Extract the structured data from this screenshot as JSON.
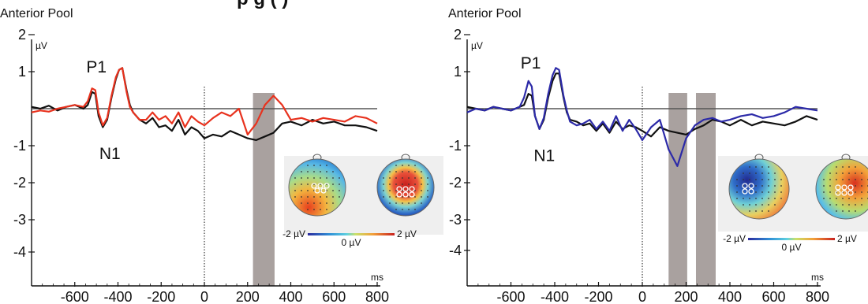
{
  "header": {
    "title_fragment": "p                                    g      ( )"
  },
  "colors": {
    "condition_a": "#e8321e",
    "condition_b": "#2c2aa8",
    "baseline_trace": "#111111",
    "shade": "#a9a19f",
    "topo_panel_bg": "#efefef"
  },
  "chart_data": [
    {
      "type": "line",
      "panel_label": "Anterior Pool",
      "y_unit": "µV",
      "x_unit": "ms",
      "xlim": [
        -800,
        800
      ],
      "ylim": [
        -5,
        2
      ],
      "x_ticks": [
        "-600",
        "-400",
        "-200",
        "0",
        "200",
        "400",
        "600",
        "800"
      ],
      "y_ticks": [
        "2",
        "1",
        "-1",
        "-2",
        "-3",
        "-4"
      ],
      "annotations": [
        {
          "text": "P1",
          "x": -510,
          "y": 0.6
        },
        {
          "text": "N1",
          "x": -450,
          "y": -0.6
        }
      ],
      "shaded_windows": [
        [
          225,
          325
        ]
      ],
      "series": [
        {
          "color": "#111111",
          "x": [
            -800,
            -760,
            -720,
            -680,
            -640,
            -600,
            -560,
            -540,
            -520,
            -505,
            -490,
            -470,
            -450,
            -430,
            -410,
            -395,
            -380,
            -360,
            -345,
            -330,
            -300,
            -270,
            -240,
            -210,
            -180,
            -150,
            -120,
            -90,
            -60,
            -30,
            0,
            40,
            80,
            120,
            160,
            200,
            240,
            280,
            320,
            360,
            400,
            450,
            500,
            550,
            600,
            650,
            700,
            750,
            800
          ],
          "y": [
            0.05,
            0.0,
            0.08,
            -0.05,
            0.05,
            0.1,
            0.0,
            0.1,
            0.45,
            0.4,
            -0.2,
            -0.5,
            -0.3,
            0.3,
            0.8,
            1.05,
            1.1,
            0.5,
            0.1,
            -0.1,
            -0.3,
            -0.4,
            -0.25,
            -0.5,
            -0.45,
            -0.6,
            -0.3,
            -0.7,
            -0.5,
            -0.6,
            -0.8,
            -0.7,
            -0.75,
            -0.6,
            -0.7,
            -0.8,
            -0.85,
            -0.75,
            -0.65,
            -0.4,
            -0.35,
            -0.45,
            -0.3,
            -0.4,
            -0.35,
            -0.45,
            -0.45,
            -0.5,
            -0.6
          ]
        },
        {
          "color": "#e8321e",
          "x": [
            -800,
            -760,
            -720,
            -680,
            -640,
            -600,
            -560,
            -540,
            -520,
            -505,
            -490,
            -470,
            -450,
            -430,
            -410,
            -395,
            -380,
            -360,
            -345,
            -330,
            -300,
            -270,
            -240,
            -210,
            -180,
            -150,
            -120,
            -90,
            -60,
            -30,
            0,
            40,
            80,
            120,
            160,
            200,
            240,
            280,
            320,
            360,
            400,
            450,
            500,
            550,
            600,
            650,
            700,
            750,
            800
          ],
          "y": [
            -0.1,
            -0.05,
            -0.08,
            0.0,
            0.05,
            0.1,
            0.05,
            0.2,
            0.55,
            0.5,
            -0.1,
            -0.45,
            -0.25,
            0.35,
            0.85,
            1.05,
            1.1,
            0.45,
            0.05,
            -0.1,
            -0.3,
            -0.3,
            -0.1,
            -0.3,
            -0.2,
            -0.4,
            -0.1,
            -0.5,
            -0.2,
            -0.35,
            -0.45,
            -0.25,
            -0.1,
            -0.2,
            0.0,
            -0.7,
            -0.4,
            0.1,
            0.35,
            0.1,
            -0.3,
            -0.25,
            -0.35,
            -0.25,
            -0.3,
            -0.35,
            -0.2,
            -0.25,
            -0.4
          ]
        }
      ],
      "topomaps": {
        "colorbar_min": "-2 µV",
        "colorbar_mid": "0 µV",
        "colorbar_max": "2 µV"
      }
    },
    {
      "type": "line",
      "panel_label": "Anterior Pool",
      "y_unit": "µV",
      "x_unit": "ms",
      "xlim": [
        -800,
        800
      ],
      "ylim": [
        -5,
        2
      ],
      "x_ticks": [
        "-600",
        "-400",
        "-200",
        "0",
        "200",
        "400",
        "600",
        "800"
      ],
      "y_ticks": [
        "2",
        "1",
        "-1",
        "-2",
        "-3",
        "-4"
      ],
      "annotations": [
        {
          "text": "P1",
          "x": -520,
          "y": 0.7
        },
        {
          "text": "N1",
          "x": -460,
          "y": -0.65
        }
      ],
      "shaded_windows": [
        [
          120,
          205
        ],
        [
          245,
          335
        ]
      ],
      "series": [
        {
          "color": "#111111",
          "x": [
            -800,
            -760,
            -720,
            -680,
            -640,
            -600,
            -560,
            -540,
            -520,
            -505,
            -490,
            -470,
            -450,
            -430,
            -410,
            -395,
            -380,
            -360,
            -345,
            -330,
            -300,
            -270,
            -240,
            -210,
            -180,
            -150,
            -120,
            -90,
            -60,
            -30,
            0,
            40,
            80,
            120,
            160,
            200,
            240,
            280,
            320,
            360,
            400,
            450,
            500,
            550,
            600,
            650,
            700,
            750,
            800
          ],
          "y": [
            0.05,
            0.0,
            -0.05,
            0.05,
            0.0,
            -0.05,
            0.05,
            0.1,
            0.4,
            0.35,
            -0.2,
            -0.55,
            -0.3,
            0.3,
            0.75,
            0.95,
            0.95,
            0.3,
            -0.1,
            -0.3,
            -0.35,
            -0.45,
            -0.4,
            -0.6,
            -0.4,
            -0.65,
            -0.35,
            -0.55,
            -0.45,
            -0.5,
            -0.6,
            -0.75,
            -0.5,
            -0.6,
            -0.65,
            -0.7,
            -0.55,
            -0.45,
            -0.3,
            -0.35,
            -0.45,
            -0.3,
            -0.45,
            -0.35,
            -0.4,
            -0.45,
            -0.35,
            -0.2,
            -0.3
          ]
        },
        {
          "color": "#2c2aa8",
          "x": [
            -800,
            -760,
            -720,
            -680,
            -640,
            -600,
            -560,
            -540,
            -520,
            -505,
            -490,
            -470,
            -450,
            -430,
            -410,
            -395,
            -380,
            -360,
            -345,
            -330,
            -300,
            -270,
            -240,
            -210,
            -180,
            -150,
            -120,
            -90,
            -60,
            -30,
            0,
            40,
            80,
            120,
            160,
            200,
            240,
            280,
            320,
            360,
            400,
            450,
            500,
            550,
            600,
            650,
            700,
            750,
            800
          ],
          "y": [
            -0.1,
            0.0,
            -0.05,
            0.05,
            0.0,
            -0.05,
            0.05,
            0.3,
            0.75,
            0.6,
            -0.2,
            -0.55,
            -0.25,
            0.4,
            0.9,
            1.1,
            1.05,
            0.35,
            -0.05,
            -0.35,
            -0.45,
            -0.4,
            -0.3,
            -0.55,
            -0.35,
            -0.6,
            -0.2,
            -0.6,
            -0.3,
            -0.55,
            -0.85,
            -0.5,
            -0.3,
            -1.1,
            -1.55,
            -0.8,
            -0.45,
            -0.3,
            -0.25,
            -0.35,
            -0.3,
            -0.2,
            -0.15,
            -0.25,
            -0.2,
            -0.1,
            0.05,
            0.0,
            -0.05
          ]
        }
      ],
      "topomaps": {
        "colorbar_min": "-2 µV",
        "colorbar_mid": "0 µV",
        "colorbar_max": "2 µV"
      }
    }
  ]
}
